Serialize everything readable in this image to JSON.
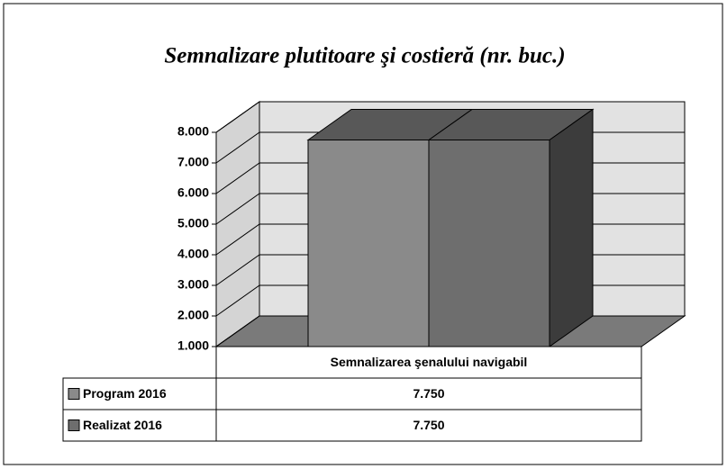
{
  "chart_data": {
    "type": "bar3d",
    "title": "Semnalizare plutitoare şi costieră (nr. buc.)",
    "categories": [
      "Semnalizarea şenalului navigabil"
    ],
    "series": [
      {
        "name": "Program 2016",
        "color": "#8a8a8a",
        "values": [
          7750
        ],
        "value_labels": [
          "7.750"
        ]
      },
      {
        "name": "Realizat 2016",
        "color": "#6e6e6e",
        "values": [
          7750
        ],
        "value_labels": [
          "7.750"
        ]
      }
    ],
    "ylim": [
      1000,
      8000
    ],
    "yticks": [
      {
        "value": 1000,
        "label": "1.000"
      },
      {
        "value": 2000,
        "label": "2.000"
      },
      {
        "value": 3000,
        "label": "3.000"
      },
      {
        "value": 4000,
        "label": "4.000"
      },
      {
        "value": 5000,
        "label": "5.000"
      },
      {
        "value": 6000,
        "label": "6.000"
      },
      {
        "value": 7000,
        "label": "7.000"
      },
      {
        "value": 8000,
        "label": "8.000"
      }
    ],
    "grid": true
  }
}
